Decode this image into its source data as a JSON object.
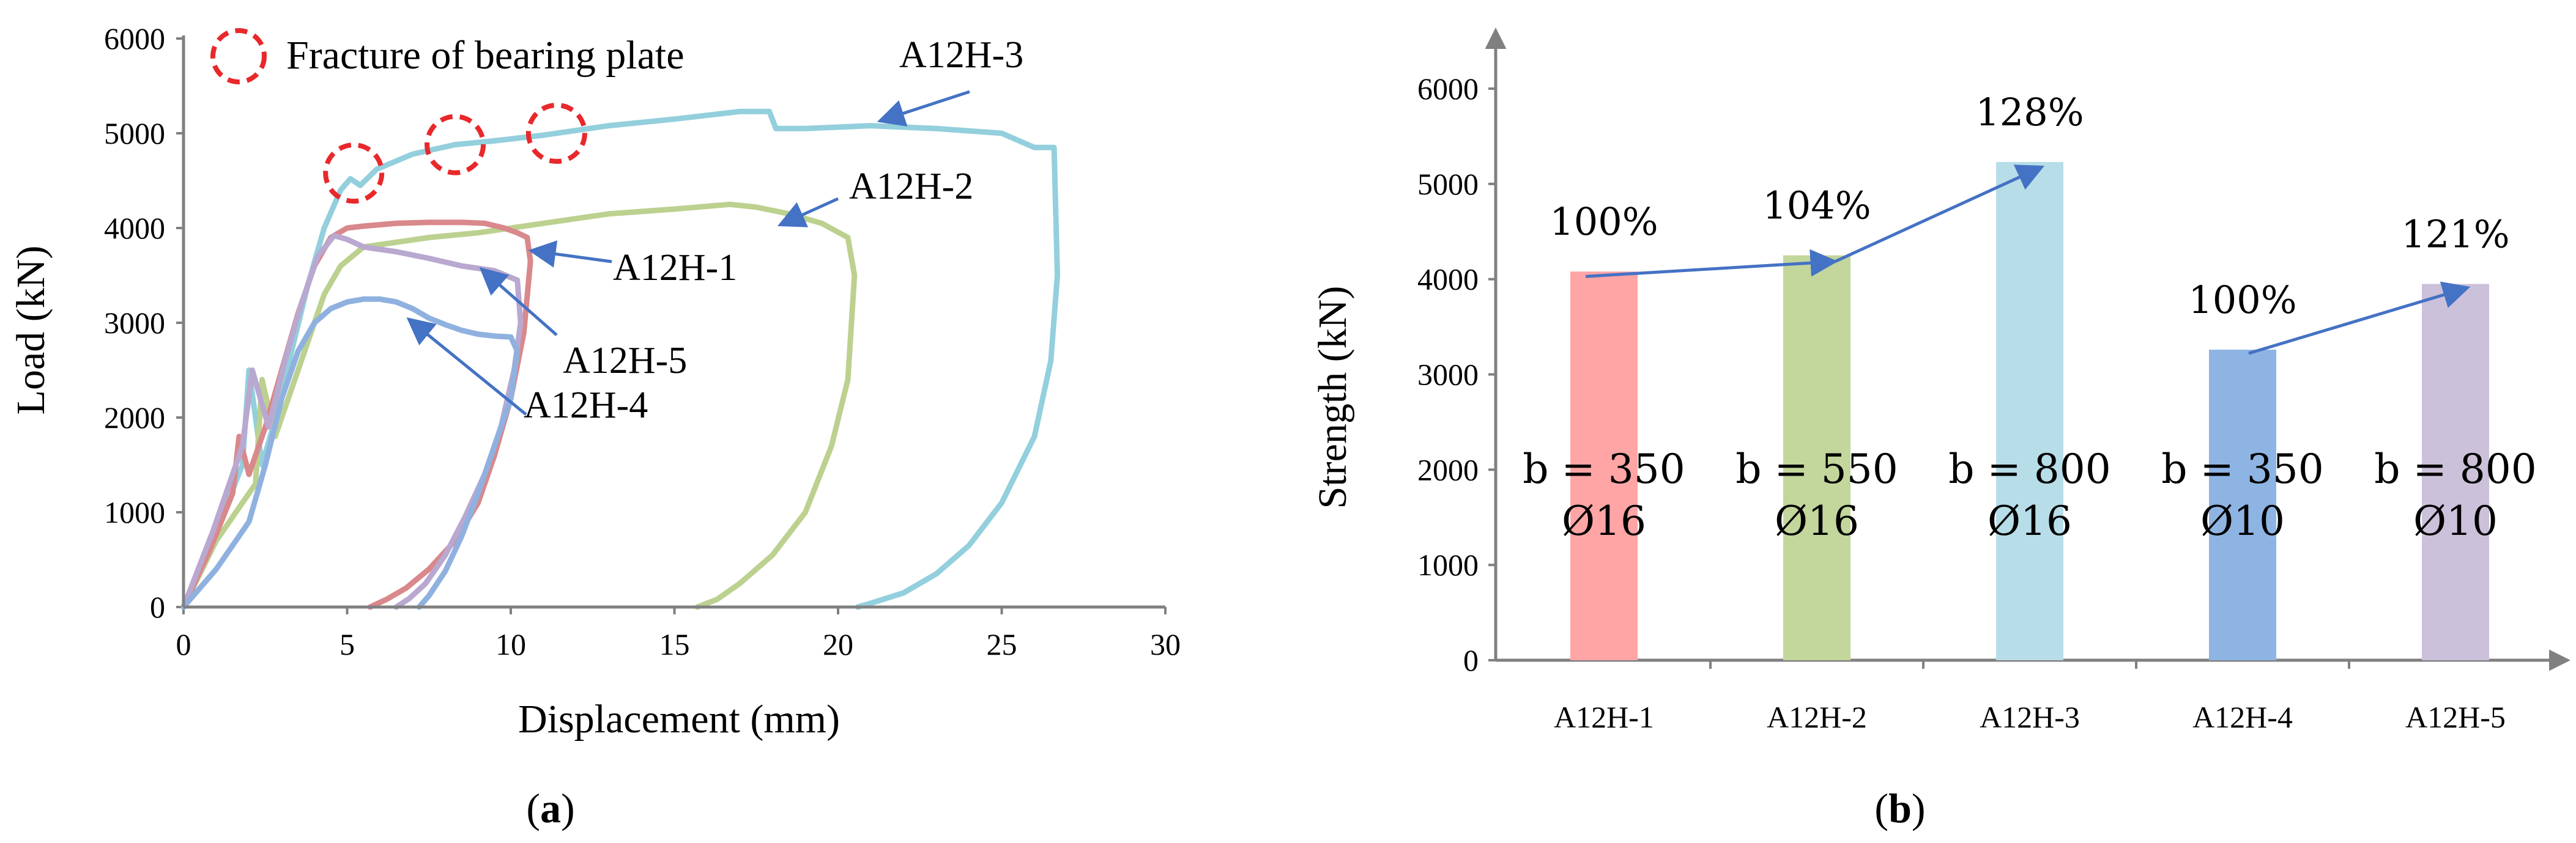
{
  "colors": {
    "A12H-1": "#d9888b",
    "A12H-2": "#bcd18f",
    "A12H-3": "#93cfdd",
    "A12H-4": "#8fb1e0",
    "A12H-5": "#b9a8d0",
    "bar_A12H-1": "#ffa5a5",
    "bar_A12H-2": "#c3d69b",
    "bar_A12H-3": "#b7dde8",
    "bar_A12H-4": "#8eb4e3",
    "bar_A12H-5": "#ccc1da",
    "arrow": "#4472c4",
    "fracture_marker": "#e8282b",
    "axis": "#808080"
  },
  "captions": {
    "a": "a",
    "b": "b"
  },
  "chart_data": [
    {
      "type": "line",
      "xlabel": "Displacement (mm)",
      "ylabel": "Load (kN)",
      "xlim": [
        0,
        30
      ],
      "ylim": [
        0,
        6000
      ],
      "xticks": [
        "0",
        "5",
        "10",
        "15",
        "20",
        "25",
        "30"
      ],
      "yticks": [
        "0",
        "1000",
        "2000",
        "3000",
        "4000",
        "5000",
        "6000"
      ],
      "legend": {
        "label": "Fracture of bearing plate",
        "position": "top-left"
      },
      "fracture_points": [
        {
          "x": 5.2,
          "y": 4580
        },
        {
          "x": 8.3,
          "y": 4880
        },
        {
          "x": 11.4,
          "y": 5000
        }
      ],
      "series": [
        {
          "name": "A12H-3",
          "x": [
            0,
            1.0,
            1.8,
            2.0,
            2.4,
            2.9,
            3.3,
            3.8,
            4.3,
            4.8,
            5.1,
            5.4,
            5.9,
            7.0,
            8.3,
            9.5,
            11.0,
            13.0,
            15.0,
            17.0,
            17.9,
            18.1,
            19.0,
            21.0,
            23.0,
            25.0,
            26.0,
            26.6,
            26.7,
            26.5,
            26.0,
            25.0,
            24.0,
            23.0,
            22.0,
            21.0,
            20.6
          ],
          "y": [
            0,
            800,
            1500,
            2500,
            1500,
            2100,
            2700,
            3400,
            4000,
            4400,
            4520,
            4450,
            4620,
            4780,
            4880,
            4920,
            4980,
            5080,
            5150,
            5230,
            5230,
            5050,
            5050,
            5080,
            5050,
            5000,
            4850,
            4850,
            3500,
            2600,
            1800,
            1100,
            650,
            350,
            150,
            40,
            0
          ]
        },
        {
          "name": "A12H-2",
          "x": [
            0,
            1.0,
            2.2,
            2.4,
            2.8,
            3.2,
            3.6,
            4.0,
            4.3,
            4.8,
            5.5,
            6.5,
            7.5,
            9.0,
            11.0,
            13.0,
            15.0,
            16.7,
            17.5,
            18.5,
            19.5,
            20.3,
            20.5,
            20.3,
            19.8,
            19.0,
            18.0,
            17.0,
            16.3,
            15.7
          ],
          "y": [
            0,
            700,
            1300,
            2400,
            1800,
            2200,
            2600,
            3000,
            3300,
            3600,
            3800,
            3850,
            3900,
            3950,
            4050,
            4150,
            4200,
            4250,
            4220,
            4150,
            4050,
            3900,
            3500,
            2400,
            1700,
            1000,
            550,
            250,
            80,
            0
          ]
        },
        {
          "name": "A12H-1",
          "x": [
            0,
            0.8,
            1.5,
            1.7,
            2.0,
            2.5,
            3.0,
            3.5,
            4.0,
            4.5,
            5.0,
            5.5,
            6.5,
            7.5,
            8.5,
            9.2,
            9.8,
            10.2,
            10.5,
            10.6,
            10.4,
            10.0,
            9.5,
            9.0,
            8.3,
            7.5,
            6.8,
            6.2,
            5.7
          ],
          "y": [
            0,
            600,
            1200,
            1800,
            1400,
            1900,
            2500,
            3100,
            3600,
            3900,
            4000,
            4020,
            4050,
            4060,
            4060,
            4050,
            4000,
            3950,
            3900,
            3650,
            2900,
            2200,
            1600,
            1100,
            700,
            400,
            200,
            80,
            0
          ]
        },
        {
          "name": "A12H-5",
          "x": [
            0,
            0.9,
            1.8,
            2.1,
            2.6,
            3.1,
            3.6,
            4.1,
            4.6,
            5.0,
            5.5,
            6.5,
            7.5,
            8.5,
            9.5,
            10.2,
            10.3,
            10.1,
            9.7,
            9.2,
            8.6,
            8.0,
            7.4,
            6.9,
            6.5
          ],
          "y": [
            0,
            800,
            1700,
            2500,
            1900,
            2600,
            3200,
            3700,
            3920,
            3880,
            3800,
            3750,
            3680,
            3600,
            3550,
            3450,
            3000,
            2500,
            1900,
            1400,
            950,
            550,
            250,
            90,
            0
          ]
        },
        {
          "name": "A12H-4",
          "x": [
            0,
            1.0,
            2.0,
            2.5,
            3.0,
            3.5,
            4.0,
            4.5,
            5.0,
            5.5,
            6.0,
            6.5,
            7.0,
            7.5,
            8.0,
            8.5,
            9.0,
            9.5,
            10.0,
            10.2,
            10.0,
            9.5,
            9.0,
            8.5,
            8.0,
            7.5,
            7.2
          ],
          "y": [
            0,
            400,
            900,
            1500,
            2200,
            2700,
            3000,
            3150,
            3220,
            3250,
            3250,
            3220,
            3150,
            3050,
            2980,
            2920,
            2880,
            2860,
            2850,
            2700,
            2200,
            1700,
            1200,
            750,
            380,
            120,
            0
          ]
        }
      ],
      "callouts": [
        "A12H-3",
        "A12H-2",
        "A12H-1",
        "A12H-5",
        "A12H-4"
      ]
    },
    {
      "type": "bar",
      "ylabel": "Strength (kN)",
      "ylim": [
        0,
        6000
      ],
      "yticks": [
        "0",
        "1000",
        "2000",
        "3000",
        "4000",
        "5000",
        "6000"
      ],
      "categories": [
        "A12H-1",
        "A12H-2",
        "A12H-3",
        "A12H-4",
        "A12H-5"
      ],
      "values": [
        4080,
        4250,
        5230,
        3260,
        3950
      ],
      "percent_labels": [
        "100%",
        "104%",
        "128%",
        "100%",
        "121%"
      ],
      "bar_labels_line1": [
        "b = 350",
        "b = 550",
        "b = 800",
        "b = 350",
        "b = 800"
      ],
      "bar_labels_line2": [
        "Ø16",
        "Ø16",
        "Ø16",
        "Ø10",
        "Ø10"
      ]
    }
  ]
}
